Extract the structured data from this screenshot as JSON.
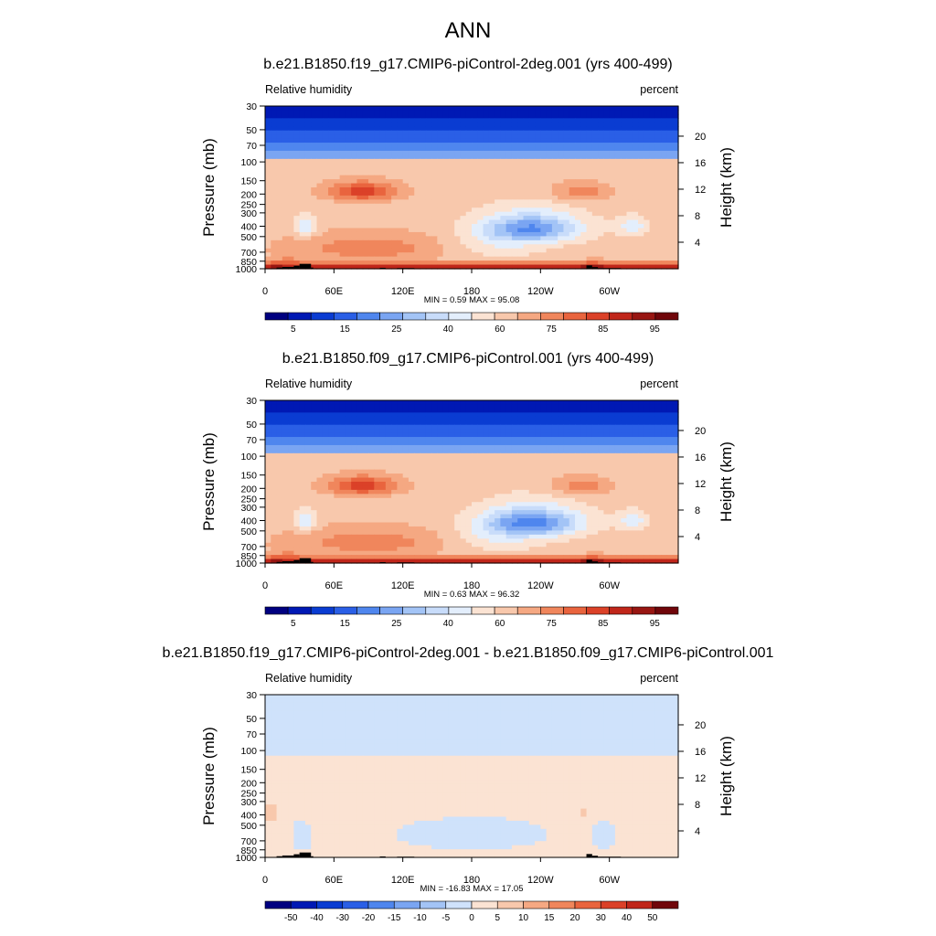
{
  "main_title": "ANN",
  "chart_data": [
    {
      "type": "heatmap",
      "title": "b.e21.B1850.f19_g17.CMIP6-piControl-2deg.001 (yrs 400-499)",
      "left_label": "Relative humidity",
      "right_label": "percent",
      "ylabel": "Pressure (mb)",
      "ylabel_right": "Height (km)",
      "xticks": [
        "0",
        "60E",
        "120E",
        "180",
        "120W",
        "60W"
      ],
      "yticks": [
        "30",
        "50",
        "70",
        "100",
        "150",
        "200",
        "250",
        "300",
        "400",
        "500",
        "700",
        "850",
        "1000"
      ],
      "yticks_right": [
        "20",
        "16",
        "12",
        "8",
        "4"
      ],
      "minmax": "MIN =   0.59  MAX =  95.08",
      "colorbar_levels": [
        "5",
        "15",
        "25",
        "40",
        "60",
        "75",
        "85",
        "95"
      ],
      "field": "full",
      "colors": [
        "#000080",
        "#0019b4",
        "#0a3cd2",
        "#2a5fe6",
        "#4f86ee",
        "#7aa5f2",
        "#a3c4f6",
        "#c8dcfa",
        "#e3eefc",
        "#fbe3d3",
        "#f8c8ac",
        "#f5a882",
        "#f0865c",
        "#e9643e",
        "#db4128",
        "#c0261a",
        "#981612",
        "#70060a"
      ],
      "scale_min": 0,
      "scale_max": 100,
      "variant": 0
    },
    {
      "type": "heatmap",
      "title": "b.e21.B1850.f09_g17.CMIP6-piControl.001 (yrs 400-499)",
      "left_label": "Relative humidity",
      "right_label": "percent",
      "ylabel": "Pressure (mb)",
      "ylabel_right": "Height (km)",
      "xticks": [
        "0",
        "60E",
        "120E",
        "180",
        "120W",
        "60W"
      ],
      "yticks": [
        "30",
        "50",
        "70",
        "100",
        "150",
        "200",
        "250",
        "300",
        "400",
        "500",
        "700",
        "850",
        "1000"
      ],
      "yticks_right": [
        "20",
        "16",
        "12",
        "8",
        "4"
      ],
      "minmax": "MIN =   0.63  MAX =  96.32",
      "colorbar_levels": [
        "5",
        "15",
        "25",
        "40",
        "60",
        "75",
        "85",
        "95"
      ],
      "field": "full",
      "colors": [
        "#000080",
        "#0019b4",
        "#0a3cd2",
        "#2a5fe6",
        "#4f86ee",
        "#7aa5f2",
        "#a3c4f6",
        "#c8dcfa",
        "#e3eefc",
        "#fbe3d3",
        "#f8c8ac",
        "#f5a882",
        "#f0865c",
        "#e9643e",
        "#db4128",
        "#c0261a",
        "#981612",
        "#70060a"
      ],
      "scale_min": 0,
      "scale_max": 100,
      "variant": 1
    },
    {
      "type": "heatmap",
      "title": "b.e21.B1850.f19_g17.CMIP6-piControl-2deg.001 - b.e21.B1850.f09_g17.CMIP6-piControl.001",
      "left_label": "Relative humidity",
      "right_label": "percent",
      "ylabel": "Pressure (mb)",
      "ylabel_right": "Height (km)",
      "xticks": [
        "0",
        "60E",
        "120E",
        "180",
        "120W",
        "60W"
      ],
      "yticks": [
        "30",
        "50",
        "70",
        "100",
        "150",
        "200",
        "250",
        "300",
        "400",
        "500",
        "700",
        "850",
        "1000"
      ],
      "yticks_right": [
        "20",
        "16",
        "12",
        "8",
        "4"
      ],
      "minmax": "MIN = -16.83  MAX =  17.05",
      "colorbar_levels": [
        "-50",
        "-40",
        "-30",
        "-20",
        "-15",
        "-10",
        "-5",
        "0",
        "5",
        "10",
        "15",
        "20",
        "30",
        "40",
        "50"
      ],
      "field": "diff",
      "colors": [
        "#000080",
        "#0019b4",
        "#0a3cd2",
        "#2a5fe6",
        "#4f86ee",
        "#7aa5f2",
        "#a3c4f6",
        "#cfe2fb",
        "#fbe3d3",
        "#f8c8ac",
        "#f5a882",
        "#f0865c",
        "#e9643e",
        "#db4128",
        "#c0261a",
        "#70060a"
      ],
      "scale_min": -55,
      "scale_max": 55,
      "variant": 2
    }
  ]
}
